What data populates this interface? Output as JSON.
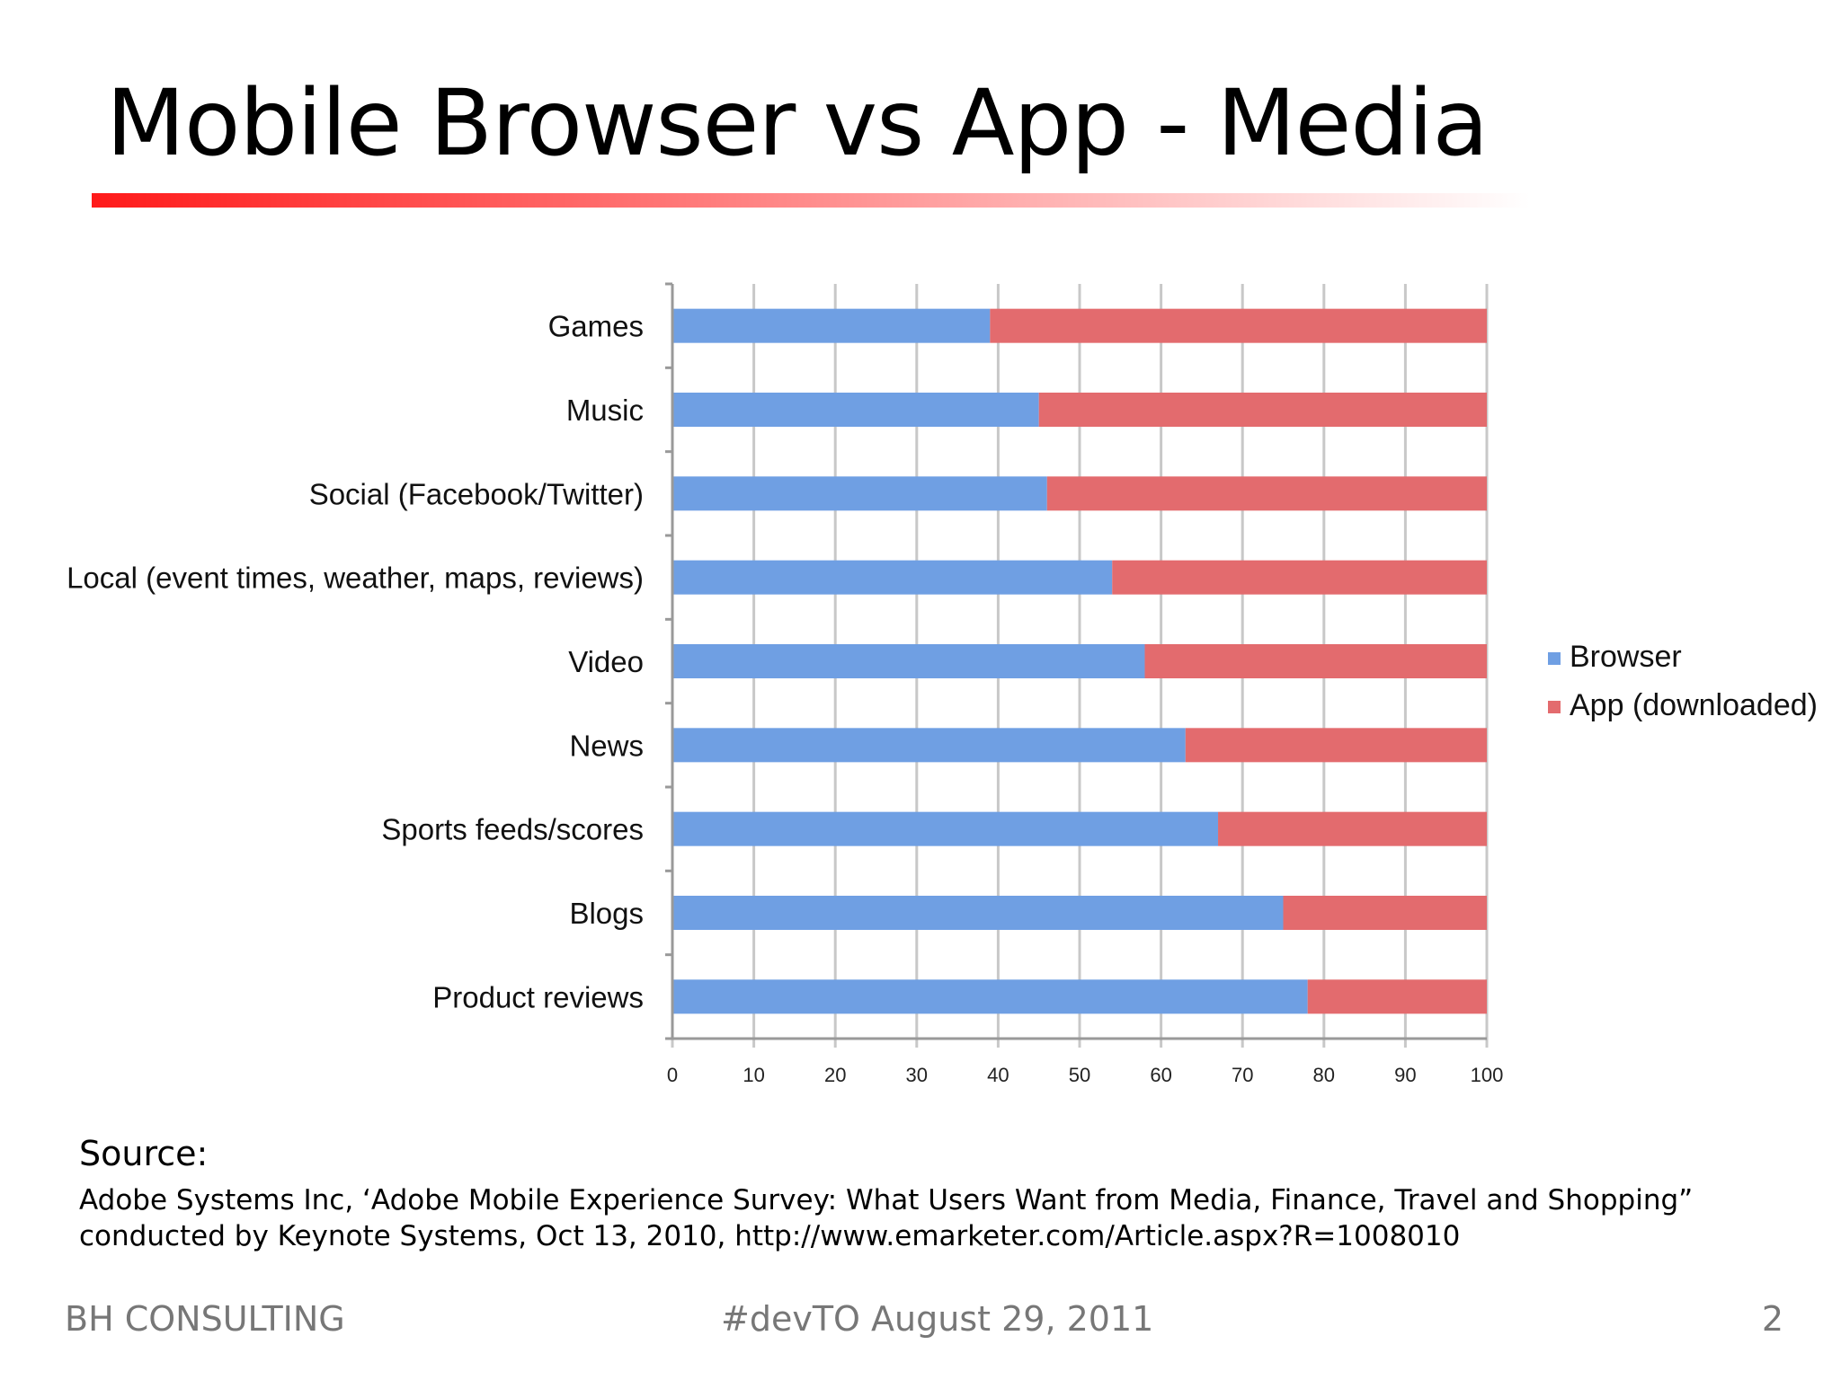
{
  "slide": {
    "title": "Mobile Browser vs App - Media",
    "source_heading": "Source:",
    "source_line_1": "Adobe Systems Inc, ‘Adobe Mobile Experience Survey: What Users Want from Media, Finance, Travel and Shopping”",
    "source_line_2": "conducted by Keynote Systems, Oct 13, 2010, http://www.emarketer.com/Article.aspx?R=1008010",
    "footer_left": "BH CONSULTING",
    "footer_center": "#devTO August 29, 2011",
    "page_number": "2"
  },
  "colors": {
    "browser": "#6f9fe3",
    "app": "#e36b6e",
    "title_rule_start": "#ff1a1a",
    "title_rule_end": "#ffffff",
    "grid": "#c8c8c8"
  },
  "chart_data": {
    "type": "bar",
    "orientation": "horizontal",
    "stacked": true,
    "categories": [
      "Games",
      "Music",
      "Social (Facebook/Twitter)",
      "Local (event times, weather, maps, reviews)",
      "Video",
      "News",
      "Sports feeds/scores",
      "Blogs",
      "Product reviews"
    ],
    "series": [
      {
        "name": "Browser",
        "values": [
          39,
          45,
          46,
          54,
          58,
          63,
          67,
          75,
          78
        ]
      },
      {
        "name": "App (downloaded)",
        "values": [
          61,
          55,
          54,
          46,
          42,
          37,
          33,
          25,
          22
        ]
      }
    ],
    "xticks": [
      "0",
      "10",
      "20",
      "30",
      "40",
      "50",
      "60",
      "70",
      "80",
      "90",
      "100"
    ],
    "xlim": [
      0,
      100
    ],
    "grid": "vertical",
    "legend": "right"
  }
}
